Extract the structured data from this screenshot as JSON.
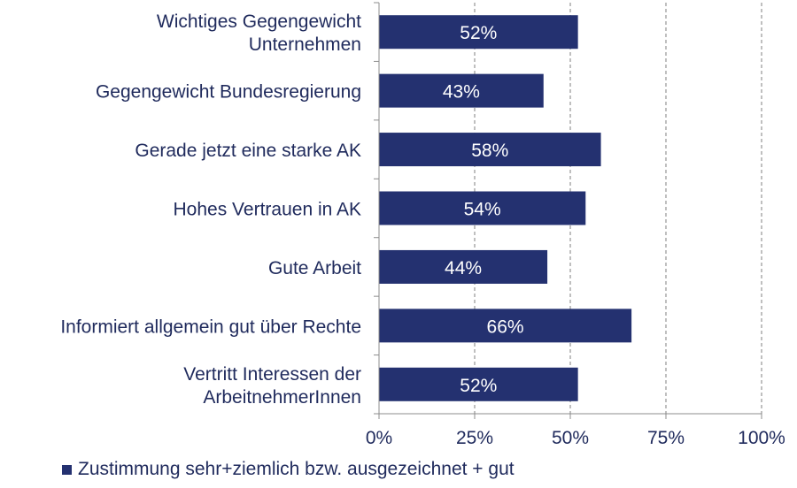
{
  "colors": {
    "bar": "#243170",
    "text": "#1f2a5c",
    "axis": "#8c8c8c",
    "grid": "#7f7f7f"
  },
  "chart_data": {
    "type": "bar",
    "orientation": "horizontal",
    "categories": [
      [
        "Wichtiges Gegengewicht",
        "Unternehmen"
      ],
      [
        "Gegengewicht Bundesregierung"
      ],
      [
        "Gerade jetzt eine starke AK"
      ],
      [
        "Hohes Vertrauen in AK"
      ],
      [
        "Gute Arbeit"
      ],
      [
        "Informiert allgemein gut über Rechte"
      ],
      [
        "Vertritt Interessen der",
        "ArbeitnehmerInnen"
      ]
    ],
    "series": [
      {
        "name": "Zustimmung sehr+ziemlich bzw. ausgezeichnet + gut",
        "values": [
          52,
          43,
          58,
          54,
          44,
          66,
          52
        ],
        "labels": [
          "52%",
          "43%",
          "58%",
          "54%",
          "44%",
          "66%",
          "52%"
        ]
      }
    ],
    "xlim": [
      0,
      100
    ],
    "xticks": [
      0,
      25,
      50,
      75,
      100
    ],
    "xtick_labels": [
      "0%",
      "25%",
      "50%",
      "75%",
      "100%"
    ],
    "grid": true,
    "legend_position": "bottom"
  }
}
